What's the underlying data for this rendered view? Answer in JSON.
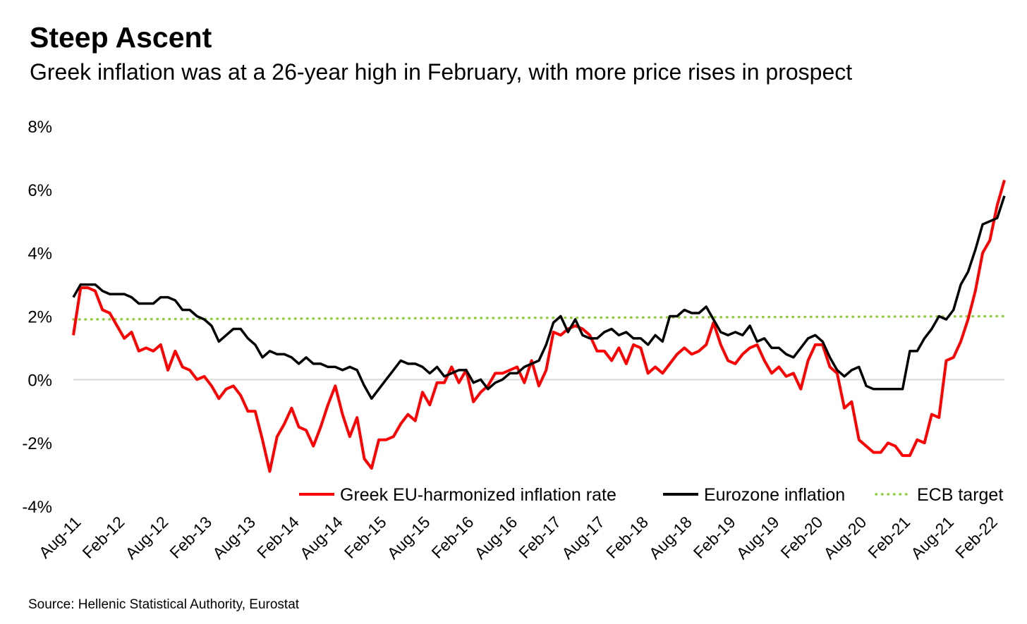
{
  "title": "Steep Ascent",
  "subtitle": "Greek inflation was at a 26-year high in February, with more price rises in prospect",
  "source": "Source: Hellenic Statistical Authority, Eurostat",
  "chart_data": {
    "type": "line",
    "start_month": "2011-08",
    "ylim": [
      -4,
      8
    ],
    "yticks": [
      -4,
      -2,
      0,
      2,
      4,
      6,
      8
    ],
    "ytick_labels": [
      "-4%",
      "-2%",
      "0%",
      "2%",
      "4%",
      "6%",
      "8%"
    ],
    "xtick_labels": [
      "Aug-11",
      "Feb-12",
      "Aug-12",
      "Feb-13",
      "Aug-13",
      "Feb-14",
      "Aug-14",
      "Feb-15",
      "Aug-15",
      "Feb-16",
      "Aug-16",
      "Feb-17",
      "Aug-17",
      "Feb-18",
      "Aug-18",
      "Feb-19",
      "Aug-19",
      "Feb-20",
      "Aug-20",
      "Feb-21",
      "Aug-21",
      "Feb-22"
    ],
    "grid": false,
    "legend_position": "bottom-right",
    "series": [
      {
        "name": "Greek EU-harmonized inflation rate",
        "color": "#ff0000",
        "style": "solid",
        "values": [
          1.4,
          2.9,
          2.9,
          2.8,
          2.2,
          2.1,
          1.7,
          1.3,
          1.5,
          0.9,
          1.0,
          0.9,
          1.1,
          0.3,
          0.9,
          0.4,
          0.3,
          0.0,
          0.1,
          -0.2,
          -0.6,
          -0.3,
          -0.2,
          -0.5,
          -1.0,
          -1.0,
          -1.9,
          -2.9,
          -1.8,
          -1.4,
          -0.9,
          -1.5,
          -1.6,
          -2.1,
          -1.5,
          -0.8,
          -0.2,
          -1.1,
          -1.8,
          -1.2,
          -2.5,
          -2.8,
          -1.9,
          -1.9,
          -1.8,
          -1.4,
          -1.1,
          -1.3,
          -0.4,
          -0.8,
          -0.1,
          -0.1,
          0.4,
          -0.1,
          0.3,
          -0.7,
          -0.4,
          -0.2,
          0.2,
          0.2,
          0.3,
          0.4,
          -0.1,
          0.6,
          -0.2,
          0.3,
          1.5,
          1.4,
          1.6,
          1.7,
          1.6,
          1.4,
          0.9,
          0.9,
          0.6,
          1.0,
          0.5,
          1.1,
          1.0,
          0.2,
          0.4,
          0.2,
          0.5,
          0.8,
          1.0,
          0.8,
          0.9,
          1.1,
          1.8,
          1.1,
          0.6,
          0.5,
          0.8,
          1.0,
          1.1,
          0.6,
          0.2,
          0.4,
          0.1,
          0.2,
          -0.3,
          0.6,
          1.1,
          1.1,
          0.4,
          0.2,
          -0.9,
          -0.7,
          -1.9,
          -2.1,
          -2.3,
          -2.3,
          -2.0,
          -2.1,
          -2.4,
          -2.4,
          -1.9,
          -2.0,
          -1.1,
          -1.2,
          0.6,
          0.7,
          1.2,
          1.9,
          2.8,
          4.0,
          4.4,
          5.5,
          6.3
        ]
      },
      {
        "name": "Eurozone inflation",
        "color": "#000000",
        "style": "solid",
        "values": [
          2.6,
          3.0,
          3.0,
          3.0,
          2.8,
          2.7,
          2.7,
          2.7,
          2.6,
          2.4,
          2.4,
          2.4,
          2.6,
          2.6,
          2.5,
          2.2,
          2.2,
          2.0,
          1.9,
          1.7,
          1.2,
          1.4,
          1.6,
          1.6,
          1.3,
          1.1,
          0.7,
          0.9,
          0.8,
          0.8,
          0.7,
          0.5,
          0.7,
          0.5,
          0.5,
          0.4,
          0.4,
          0.3,
          0.4,
          0.3,
          -0.2,
          -0.6,
          -0.3,
          0.0,
          0.3,
          0.6,
          0.5,
          0.5,
          0.4,
          0.2,
          0.4,
          0.1,
          0.2,
          0.3,
          0.3,
          -0.1,
          0.0,
          -0.3,
          -0.1,
          0.0,
          0.2,
          0.2,
          0.4,
          0.5,
          0.6,
          1.1,
          1.8,
          2.0,
          1.5,
          1.9,
          1.4,
          1.3,
          1.3,
          1.5,
          1.6,
          1.4,
          1.5,
          1.3,
          1.3,
          1.1,
          1.4,
          1.2,
          2.0,
          2.0,
          2.2,
          2.1,
          2.1,
          2.3,
          1.9,
          1.5,
          1.4,
          1.5,
          1.4,
          1.7,
          1.2,
          1.3,
          1.0,
          1.0,
          0.8,
          0.7,
          1.0,
          1.3,
          1.4,
          1.2,
          0.7,
          0.3,
          0.1,
          0.3,
          0.4,
          -0.2,
          -0.3,
          -0.3,
          -0.3,
          -0.3,
          -0.3,
          0.9,
          0.9,
          1.3,
          1.6,
          2.0,
          1.9,
          2.2,
          3.0,
          3.4,
          4.1,
          4.9,
          5.0,
          5.1,
          5.8
        ]
      },
      {
        "name": "ECB target",
        "color": "#8fcf3c",
        "style": "dotted",
        "values": [
          1.9,
          2.0
        ]
      }
    ]
  }
}
